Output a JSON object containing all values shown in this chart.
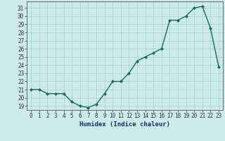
{
  "x": [
    0,
    1,
    2,
    3,
    4,
    5,
    6,
    7,
    8,
    9,
    10,
    11,
    12,
    13,
    14,
    15,
    16,
    17,
    18,
    19,
    20,
    21,
    22,
    23
  ],
  "y": [
    21.0,
    21.0,
    20.5,
    20.5,
    20.5,
    19.5,
    19.0,
    18.8,
    19.2,
    20.5,
    22.0,
    22.0,
    23.0,
    24.5,
    25.0,
    25.5,
    26.0,
    29.5,
    29.5,
    30.0,
    31.0,
    31.2,
    28.5,
    23.8
  ],
  "line_color": "#1a6b5a",
  "marker": "D",
  "marker_size": 2.0,
  "bg_color": "#cceae8",
  "grid_color": "#aad4d0",
  "xlabel": "Humidex (Indice chaleur)",
  "ylim_min": 18.5,
  "ylim_max": 31.8,
  "xlim_min": -0.5,
  "xlim_max": 23.5,
  "yticks": [
    19,
    20,
    21,
    22,
    23,
    24,
    25,
    26,
    27,
    28,
    29,
    30,
    31
  ],
  "xticks": [
    0,
    1,
    2,
    3,
    4,
    5,
    6,
    7,
    8,
    9,
    10,
    11,
    12,
    13,
    14,
    15,
    16,
    17,
    18,
    19,
    20,
    21,
    22,
    23
  ],
  "tick_fontsize": 5.5,
  "xlabel_fontsize": 6.5,
  "spine_color": "#555555",
  "tick_color": "#333333"
}
